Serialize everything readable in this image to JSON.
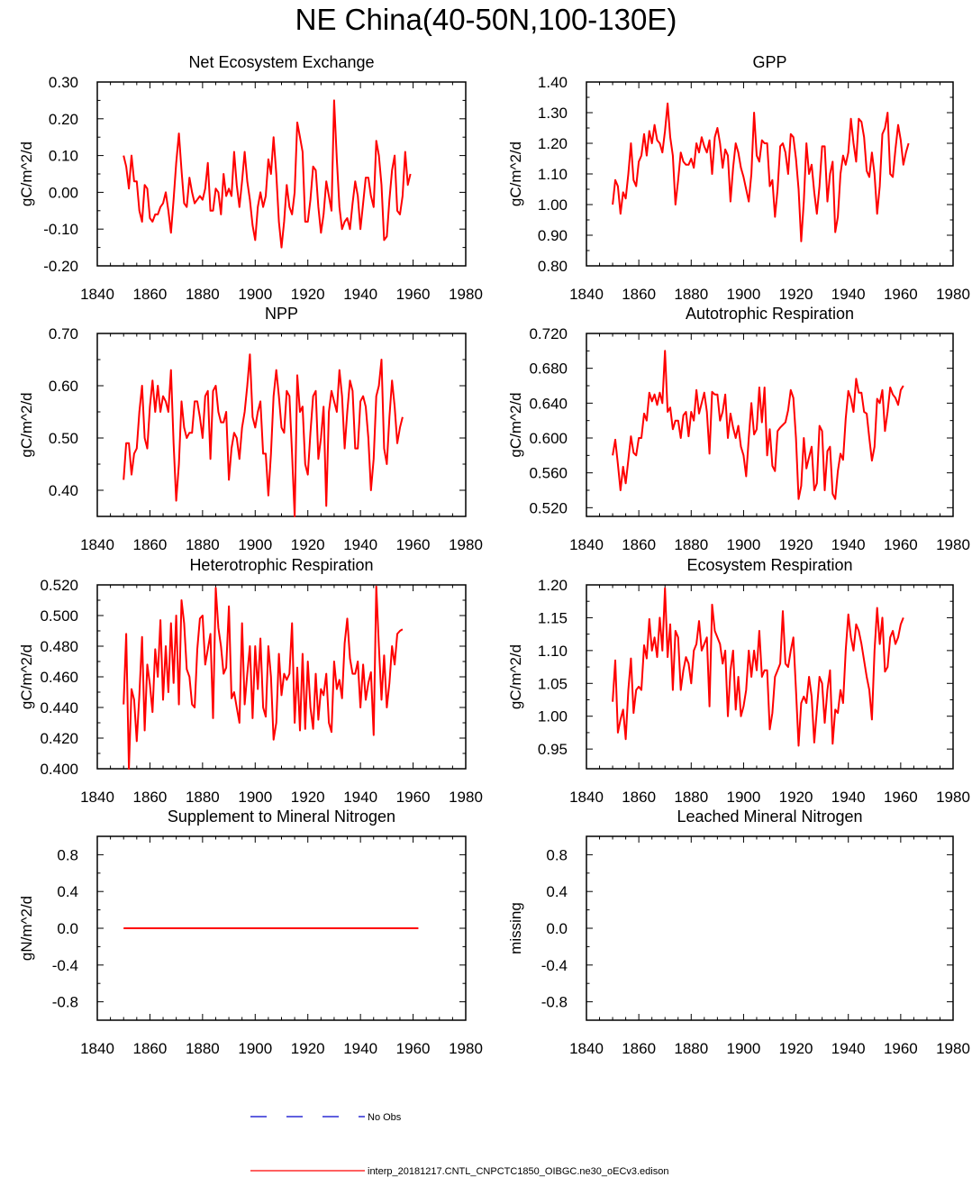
{
  "figure": {
    "title": "NE China(40-50N,100-130E)",
    "line_color": "#ff0000",
    "obs_color": "#0000cc"
  },
  "legend": {
    "obs_label": "No Obs",
    "model_label": "interp_20181217.CNTL_CNPCTC1850_OIBGC.ne30_oECv3.edison"
  },
  "chart_data": [
    {
      "type": "line",
      "title": "Net Ecosystem Exchange",
      "ylabel": "gC/m^2/d",
      "xlabel": "",
      "xlim": [
        1840,
        1980
      ],
      "ylim": [
        -0.2,
        0.3
      ],
      "xticks": [
        1840,
        1860,
        1880,
        1900,
        1920,
        1940,
        1960,
        1980
      ],
      "yticks": [
        "-0.20",
        "-0.10",
        "0.00",
        "0.10",
        "0.20",
        "0.30"
      ],
      "x_start": 1850,
      "series": [
        {
          "name": "interp_20181217.CNTL_CNPCTC1850_OIBGC.ne30_oECv3.edison",
          "values": [
            0.1,
            0.07,
            0.01,
            0.1,
            0.03,
            0.03,
            -0.05,
            -0.08,
            0.02,
            0.01,
            -0.07,
            -0.08,
            -0.06,
            -0.06,
            -0.04,
            -0.03,
            0.0,
            -0.05,
            -0.11,
            -0.02,
            0.08,
            0.16,
            0.06,
            -0.03,
            -0.04,
            0.04,
            0.0,
            -0.03,
            -0.02,
            -0.01,
            -0.02,
            0.01,
            0.08,
            -0.05,
            -0.05,
            0.01,
            0.0,
            -0.06,
            0.05,
            -0.01,
            0.01,
            -0.01,
            0.11,
            0.02,
            -0.04,
            0.03,
            0.11,
            0.03,
            -0.02,
            -0.09,
            -0.13,
            -0.04,
            0.0,
            -0.04,
            -0.01,
            0.09,
            0.05,
            0.15,
            0.05,
            -0.08,
            -0.15,
            -0.08,
            0.02,
            -0.04,
            -0.06,
            0.0,
            0.19,
            0.15,
            0.11,
            -0.08,
            -0.08,
            -0.02,
            0.07,
            0.06,
            -0.04,
            -0.11,
            -0.06,
            0.03,
            -0.01,
            -0.05,
            0.25,
            0.09,
            -0.04,
            -0.1,
            -0.08,
            -0.07,
            -0.1,
            -0.03,
            0.03,
            -0.01,
            -0.1,
            -0.03,
            0.04,
            0.04,
            -0.01,
            -0.04,
            0.14,
            0.1,
            0.02,
            -0.13,
            -0.12,
            -0.02,
            0.06,
            0.1,
            -0.05,
            -0.06,
            -0.01,
            0.11,
            0.02,
            0.05
          ]
        }
      ]
    },
    {
      "type": "line",
      "title": "GPP",
      "ylabel": "gC/m^2/d",
      "xlabel": "",
      "xlim": [
        1840,
        1980
      ],
      "ylim": [
        0.8,
        1.4
      ],
      "xticks": [
        1840,
        1860,
        1880,
        1900,
        1920,
        1940,
        1960,
        1980
      ],
      "yticks": [
        "0.80",
        "0.90",
        "1.00",
        "1.10",
        "1.20",
        "1.30",
        "1.40"
      ],
      "x_start": 1850,
      "series": [
        {
          "name": "interp_20181217.CNTL_CNPCTC1850_OIBGC.ne30_oECv3.edison",
          "values": [
            1.0,
            1.08,
            1.06,
            0.97,
            1.04,
            1.02,
            1.1,
            1.2,
            1.08,
            1.06,
            1.14,
            1.16,
            1.23,
            1.16,
            1.24,
            1.2,
            1.26,
            1.21,
            1.2,
            1.17,
            1.24,
            1.33,
            1.22,
            1.16,
            1.0,
            1.08,
            1.17,
            1.14,
            1.13,
            1.13,
            1.15,
            1.12,
            1.2,
            1.17,
            1.22,
            1.19,
            1.17,
            1.21,
            1.1,
            1.22,
            1.25,
            1.2,
            1.12,
            1.18,
            1.16,
            1.01,
            1.12,
            1.2,
            1.17,
            1.12,
            1.09,
            1.05,
            1.01,
            1.1,
            1.3,
            1.16,
            1.14,
            1.21,
            1.2,
            1.2,
            1.06,
            1.08,
            0.96,
            1.05,
            1.19,
            1.2,
            1.17,
            1.1,
            1.23,
            1.22,
            1.15,
            1.05,
            0.88,
            1.01,
            1.2,
            1.1,
            1.13,
            1.04,
            0.97,
            1.06,
            1.19,
            1.19,
            1.01,
            1.1,
            1.14,
            0.91,
            0.96,
            1.1,
            1.16,
            1.13,
            1.17,
            1.28,
            1.2,
            1.14,
            1.28,
            1.27,
            1.22,
            1.11,
            1.09,
            1.17,
            1.1,
            0.97,
            1.06,
            1.23,
            1.25,
            1.3,
            1.1,
            1.09,
            1.18,
            1.26,
            1.21,
            1.13,
            1.17,
            1.2
          ]
        }
      ]
    },
    {
      "type": "line",
      "title": "NPP",
      "ylabel": "gC/m^2/d",
      "xlabel": "",
      "xlim": [
        1840,
        1980
      ],
      "ylim": [
        0.35,
        0.7
      ],
      "xticks": [
        1840,
        1860,
        1880,
        1900,
        1920,
        1940,
        1960,
        1980
      ],
      "yticks": [
        "0.40",
        "0.50",
        "0.60",
        "0.70"
      ],
      "x_start": 1850,
      "series": [
        {
          "name": "interp_20181217.CNTL_CNPCTC1850_OIBGC.ne30_oECv3.edison",
          "values": [
            0.42,
            0.49,
            0.49,
            0.43,
            0.47,
            0.48,
            0.55,
            0.6,
            0.5,
            0.48,
            0.56,
            0.61,
            0.55,
            0.6,
            0.55,
            0.58,
            0.57,
            0.55,
            0.63,
            0.49,
            0.38,
            0.45,
            0.57,
            0.52,
            0.5,
            0.51,
            0.51,
            0.57,
            0.57,
            0.54,
            0.5,
            0.58,
            0.59,
            0.46,
            0.59,
            0.6,
            0.55,
            0.53,
            0.53,
            0.55,
            0.42,
            0.48,
            0.51,
            0.5,
            0.46,
            0.52,
            0.55,
            0.6,
            0.66,
            0.54,
            0.52,
            0.55,
            0.57,
            0.47,
            0.47,
            0.39,
            0.47,
            0.58,
            0.63,
            0.58,
            0.52,
            0.51,
            0.59,
            0.58,
            0.47,
            0.35,
            0.62,
            0.55,
            0.56,
            0.45,
            0.43,
            0.51,
            0.58,
            0.59,
            0.46,
            0.5,
            0.56,
            0.37,
            0.55,
            0.59,
            0.57,
            0.55,
            0.63,
            0.58,
            0.48,
            0.55,
            0.61,
            0.59,
            0.48,
            0.48,
            0.57,
            0.58,
            0.56,
            0.5,
            0.4,
            0.46,
            0.58,
            0.6,
            0.65,
            0.48,
            0.45,
            0.54,
            0.61,
            0.56,
            0.49,
            0.52,
            0.54
          ]
        }
      ]
    },
    {
      "type": "line",
      "title": "Autotrophic Respiration",
      "ylabel": "gC/m^2/d",
      "xlabel": "",
      "xlim": [
        1840,
        1980
      ],
      "ylim": [
        0.51,
        0.72
      ],
      "xticks": [
        1840,
        1860,
        1880,
        1900,
        1920,
        1940,
        1960,
        1980
      ],
      "yticks": [
        "0.520",
        "0.560",
        "0.600",
        "0.640",
        "0.680",
        "0.720"
      ],
      "x_start": 1850,
      "series": [
        {
          "name": "interp_20181217.CNTL_CNPCTC1850_OIBGC.ne30_oECv3.edison",
          "values": [
            0.58,
            0.598,
            0.57,
            0.54,
            0.567,
            0.548,
            0.575,
            0.602,
            0.583,
            0.58,
            0.6,
            0.6,
            0.628,
            0.62,
            0.652,
            0.642,
            0.65,
            0.638,
            0.652,
            0.64,
            0.7,
            0.63,
            0.635,
            0.61,
            0.62,
            0.62,
            0.6,
            0.626,
            0.63,
            0.602,
            0.63,
            0.62,
            0.655,
            0.628,
            0.64,
            0.652,
            0.63,
            0.582,
            0.653,
            0.65,
            0.65,
            0.62,
            0.63,
            0.65,
            0.6,
            0.628,
            0.612,
            0.6,
            0.614,
            0.59,
            0.58,
            0.556,
            0.6,
            0.64,
            0.604,
            0.61,
            0.658,
            0.618,
            0.658,
            0.58,
            0.61,
            0.568,
            0.562,
            0.608,
            0.612,
            0.615,
            0.618,
            0.632,
            0.655,
            0.646,
            0.6,
            0.53,
            0.545,
            0.6,
            0.565,
            0.578,
            0.59,
            0.54,
            0.548,
            0.614,
            0.608,
            0.54,
            0.585,
            0.59,
            0.536,
            0.53,
            0.562,
            0.582,
            0.575,
            0.622,
            0.654,
            0.645,
            0.63,
            0.668,
            0.652,
            0.652,
            0.63,
            0.628,
            0.6,
            0.574,
            0.59,
            0.645,
            0.64,
            0.655,
            0.608,
            0.63,
            0.658,
            0.65,
            0.646,
            0.638,
            0.655,
            0.66
          ]
        }
      ]
    },
    {
      "type": "line",
      "title": "Heterotrophic Respiration",
      "ylabel": "gC/m^2/d",
      "xlabel": "",
      "xlim": [
        1840,
        1980
      ],
      "ylim": [
        0.4,
        0.52
      ],
      "xticks": [
        1840,
        1860,
        1880,
        1900,
        1920,
        1940,
        1960,
        1980
      ],
      "yticks": [
        "0.400",
        "0.420",
        "0.440",
        "0.460",
        "0.480",
        "0.500",
        "0.520"
      ],
      "x_start": 1850,
      "series": [
        {
          "name": "interp_20181217.CNTL_CNPCTC1850_OIBGC.ne30_oECv3.edison",
          "values": [
            0.442,
            0.488,
            0.4,
            0.452,
            0.445,
            0.418,
            0.448,
            0.486,
            0.425,
            0.468,
            0.455,
            0.437,
            0.478,
            0.46,
            0.497,
            0.445,
            0.48,
            0.45,
            0.495,
            0.456,
            0.5,
            0.442,
            0.51,
            0.495,
            0.465,
            0.46,
            0.442,
            0.44,
            0.478,
            0.498,
            0.5,
            0.468,
            0.478,
            0.488,
            0.433,
            0.518,
            0.492,
            0.48,
            0.462,
            0.466,
            0.506,
            0.446,
            0.45,
            0.44,
            0.43,
            0.495,
            0.442,
            0.462,
            0.48,
            0.433,
            0.48,
            0.452,
            0.485,
            0.44,
            0.434,
            0.48,
            0.46,
            0.419,
            0.43,
            0.475,
            0.448,
            0.462,
            0.458,
            0.462,
            0.495,
            0.43,
            0.466,
            0.425,
            0.475,
            0.426,
            0.47,
            0.44,
            0.426,
            0.462,
            0.432,
            0.452,
            0.448,
            0.462,
            0.43,
            0.424,
            0.47,
            0.452,
            0.458,
            0.446,
            0.482,
            0.498,
            0.472,
            0.462,
            0.462,
            0.47,
            0.44,
            0.468,
            0.445,
            0.456,
            0.463,
            0.422,
            0.519,
            0.48,
            0.445,
            0.474,
            0.44,
            0.456,
            0.48,
            0.468,
            0.488,
            0.49,
            0.491
          ]
        }
      ]
    },
    {
      "type": "line",
      "title": "Ecosystem Respiration",
      "ylabel": "gC/m^2/d",
      "xlabel": "",
      "xlim": [
        1840,
        1980
      ],
      "ylim": [
        0.92,
        1.2
      ],
      "xticks": [
        1840,
        1860,
        1880,
        1900,
        1920,
        1940,
        1960,
        1980
      ],
      "yticks": [
        "0.95",
        "1.00",
        "1.05",
        "1.10",
        "1.15",
        "1.20"
      ],
      "x_start": 1850,
      "series": [
        {
          "name": "interp_20181217.CNTL_CNPCTC1850_OIBGC.ne30_oECv3.edison",
          "values": [
            1.022,
            1.085,
            0.975,
            0.995,
            1.01,
            0.965,
            1.04,
            1.088,
            1.005,
            1.04,
            1.045,
            1.04,
            1.108,
            1.088,
            1.148,
            1.1,
            1.12,
            1.09,
            1.15,
            1.1,
            1.195,
            1.09,
            1.14,
            1.04,
            1.13,
            1.12,
            1.04,
            1.07,
            1.09,
            1.08,
            1.05,
            1.1,
            1.11,
            1.145,
            1.1,
            1.11,
            1.12,
            1.015,
            1.17,
            1.13,
            1.12,
            1.11,
            1.08,
            1.1,
            1.0,
            1.07,
            1.1,
            1.01,
            1.06,
            1.0,
            1.015,
            1.04,
            1.1,
            1.06,
            1.1,
            1.07,
            1.13,
            1.06,
            1.07,
            1.07,
            0.98,
            1.005,
            1.06,
            1.07,
            1.08,
            1.16,
            1.08,
            1.075,
            1.1,
            1.12,
            1.04,
            0.955,
            1.02,
            1.03,
            1.02,
            1.06,
            1.03,
            0.96,
            1.01,
            1.06,
            1.05,
            0.99,
            1.04,
            1.07,
            0.958,
            1.01,
            1.005,
            1.04,
            1.02,
            1.1,
            1.155,
            1.12,
            1.1,
            1.14,
            1.13,
            1.11,
            1.085,
            1.06,
            1.04,
            0.995,
            1.1,
            1.165,
            1.11,
            1.15,
            1.068,
            1.075,
            1.12,
            1.13,
            1.11,
            1.12,
            1.14,
            1.15
          ]
        }
      ]
    },
    {
      "type": "line",
      "title": "Supplement to Mineral Nitrogen",
      "ylabel": "gN/m^2/d",
      "xlabel": "",
      "xlim": [
        1840,
        1980
      ],
      "ylim": [
        -1.0,
        1.0
      ],
      "xticks": [
        1840,
        1860,
        1880,
        1900,
        1920,
        1940,
        1960,
        1980
      ],
      "yticks": [
        "-0.8",
        "-0.4",
        "0.0",
        "0.4",
        "0.8"
      ],
      "ytick_values": [
        -0.8,
        -0.4,
        0.0,
        0.4,
        0.8
      ],
      "x_start": 1850,
      "constant_series": {
        "value": 0.0,
        "x_start": 1850,
        "x_end": 1962
      }
    },
    {
      "type": "line",
      "title": "Leached Mineral Nitrogen",
      "ylabel": "missing",
      "xlabel": "",
      "xlim": [
        1840,
        1980
      ],
      "ylim": [
        -1.0,
        1.0
      ],
      "xticks": [
        1840,
        1860,
        1880,
        1900,
        1920,
        1940,
        1960,
        1980
      ],
      "yticks": [
        "-0.8",
        "-0.4",
        "0.0",
        "0.4",
        "0.8"
      ],
      "ytick_values": [
        -0.8,
        -0.4,
        0.0,
        0.4,
        0.8
      ],
      "x_start": 1850,
      "series": []
    }
  ]
}
